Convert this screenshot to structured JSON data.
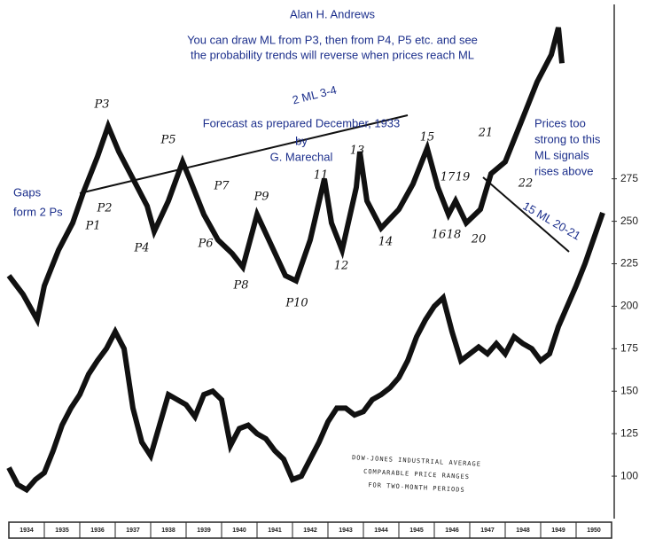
{
  "chart_data": {
    "type": "line",
    "annotations": [
      "Alan H. Andrews",
      "You can draw ML from P3, then from P4,  P5 etc. and see",
      "the probability trends will reverse when prices reach ML",
      "2 ML 3-4",
      "Forecast as prepared December, 1933",
      "by",
      "G. Marechal",
      "Prices too",
      "strong to this",
      "ML signals",
      "rises above",
      "15 ML 20-21",
      "Gaps",
      "form 2 Ps"
    ],
    "point_labels": [
      "P3",
      "P5",
      "P1",
      "P2",
      "P4",
      "P6",
      "P7",
      "P8",
      "P9",
      "P10",
      "11",
      "12",
      "13",
      "14",
      "15",
      "16",
      "17",
      "18",
      "19",
      "20",
      "21",
      "22"
    ],
    "caption": [
      "DOW-JONES INDUSTRIAL AVERAGE",
      "COMPARABLE PRICE RANGES",
      "FOR TWO-MONTH PERIODS"
    ],
    "series": [
      {
        "color": "#111111",
        "x": [
          1934,
          1934.4,
          1934.8,
          1935,
          1935.4,
          1935.8,
          1936.1,
          1936.5,
          1936.8,
          1937.1,
          1937.5,
          1937.9,
          1938.1,
          1938.5,
          1938.9,
          1939.1,
          1939.5,
          1939.9,
          1940.3,
          1940.6,
          1941,
          1941.4,
          1941.8,
          1942.1,
          1942.5,
          1942.9,
          1943.1,
          1943.4,
          1943.8,
          1943.9,
          1944.1,
          1944.5,
          1945,
          1945.4,
          1945.8,
          1946.1,
          1946.4,
          1946.6,
          1946.9,
          1947.3,
          1947.6,
          1948,
          1948.5,
          1948.9,
          1949.3,
          1949.5,
          1949.6
        ],
        "values": [
          218,
          207,
          192,
          212,
          233,
          249,
          267,
          288,
          306,
          291,
          275,
          259,
          244,
          262,
          285,
          275,
          254,
          239,
          231,
          223,
          254,
          236,
          218,
          215,
          239,
          275,
          249,
          233,
          270,
          291,
          262,
          246,
          257,
          272,
          293,
          270,
          254,
          262,
          249,
          257,
          278,
          285,
          311,
          332,
          348,
          364,
          343
        ]
      },
      {
        "color": "#111111",
        "x": [
          1934,
          1934.25,
          1934.5,
          1934.75,
          1935,
          1935.25,
          1935.5,
          1935.75,
          1936,
          1936.25,
          1936.5,
          1936.75,
          1937,
          1937.25,
          1937.5,
          1937.75,
          1938,
          1938.25,
          1938.5,
          1938.75,
          1939,
          1939.25,
          1939.5,
          1939.75,
          1940,
          1940.25,
          1940.5,
          1940.75,
          1941,
          1941.25,
          1941.5,
          1941.75,
          1942,
          1942.25,
          1942.5,
          1942.75,
          1943,
          1943.25,
          1943.5,
          1943.75,
          1944,
          1944.25,
          1944.5,
          1944.75,
          1945,
          1945.25,
          1945.5,
          1945.75,
          1946,
          1946.25,
          1946.5,
          1946.75,
          1947,
          1947.25,
          1947.5,
          1947.75,
          1948,
          1948.25,
          1948.5,
          1948.75,
          1949,
          1949.25,
          1949.5,
          1949.75,
          1950,
          1950.25,
          1950.5,
          1950.75
        ],
        "values": [
          105,
          95,
          92,
          98,
          102,
          115,
          130,
          140,
          148,
          160,
          168,
          175,
          185,
          175,
          140,
          120,
          112,
          130,
          148,
          145,
          142,
          135,
          148,
          150,
          145,
          118,
          128,
          130,
          125,
          122,
          115,
          110,
          98,
          100,
          110,
          120,
          132,
          140,
          140,
          136,
          138,
          145,
          148,
          152,
          158,
          168,
          182,
          192,
          200,
          205,
          185,
          168,
          172,
          176,
          172,
          178,
          172,
          182,
          178,
          175,
          168,
          172,
          188,
          200,
          212,
          225,
          240,
          255
        ]
      }
    ],
    "xlim": [
      1934,
      1951
    ],
    "xticks": [
      1934,
      1935,
      1936,
      1937,
      1938,
      1939,
      1940,
      1941,
      1942,
      1943,
      1944,
      1945,
      1946,
      1947,
      1948,
      1949,
      1950
    ],
    "ylim": [
      75,
      375
    ],
    "yticks": [
      100,
      125,
      150,
      175,
      200,
      225,
      250,
      275
    ]
  }
}
